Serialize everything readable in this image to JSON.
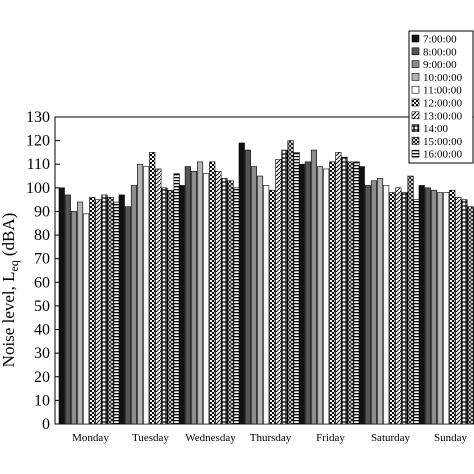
{
  "chart_data": {
    "type": "bar",
    "ylabel": "Noise level, L",
    "ylabel_subscript": "eq",
    "ylabel_unit": "(dBA)",
    "ylim": [
      0,
      130
    ],
    "ytick_step": 10,
    "grid": false,
    "legend_position": "top-right",
    "categories": [
      "Monday",
      "Tuesday",
      "Wednesday",
      "Thursday",
      "Friday",
      "Saturday",
      "Sunday"
    ],
    "series": [
      {
        "name": "7:00:00",
        "values": [
          100,
          97,
          101,
          119,
          110,
          109,
          101
        ],
        "fill": "#111111"
      },
      {
        "name": "8:00:00",
        "values": [
          97,
          92,
          109,
          116,
          111,
          101,
          100
        ],
        "fill": "#555555"
      },
      {
        "name": "9:00:00",
        "values": [
          90,
          101,
          107,
          109,
          116,
          103,
          99
        ],
        "fill": "#8c8c8c"
      },
      {
        "name": "10:00:00",
        "values": [
          94,
          110,
          111,
          105,
          109,
          104,
          98
        ],
        "fill": "#b4b4b4"
      },
      {
        "name": "11:00:00",
        "values": [
          89,
          109,
          106,
          101,
          108,
          101,
          98
        ],
        "fill": "#ffffff"
      },
      {
        "name": "12:00:00",
        "values": [
          96,
          115,
          111,
          99,
          111,
          98,
          99
        ],
        "fill": "url(#pat-checker)"
      },
      {
        "name": "13:00:00",
        "values": [
          95,
          108,
          107,
          112,
          115,
          100,
          96
        ],
        "fill": "url(#pat-diag)"
      },
      {
        "name": "14:00",
        "values": [
          97,
          100,
          104,
          116,
          113,
          98,
          95
        ],
        "fill": "url(#pat-cross)"
      },
      {
        "name": "15:00:00",
        "values": [
          96,
          99,
          103,
          120,
          111,
          105,
          92
        ],
        "fill": "url(#pat-wave)"
      },
      {
        "name": "16:00:00",
        "values": [
          94,
          106,
          100,
          115,
          111,
          95,
          91
        ],
        "fill": "url(#pat-hstripe)"
      }
    ]
  }
}
